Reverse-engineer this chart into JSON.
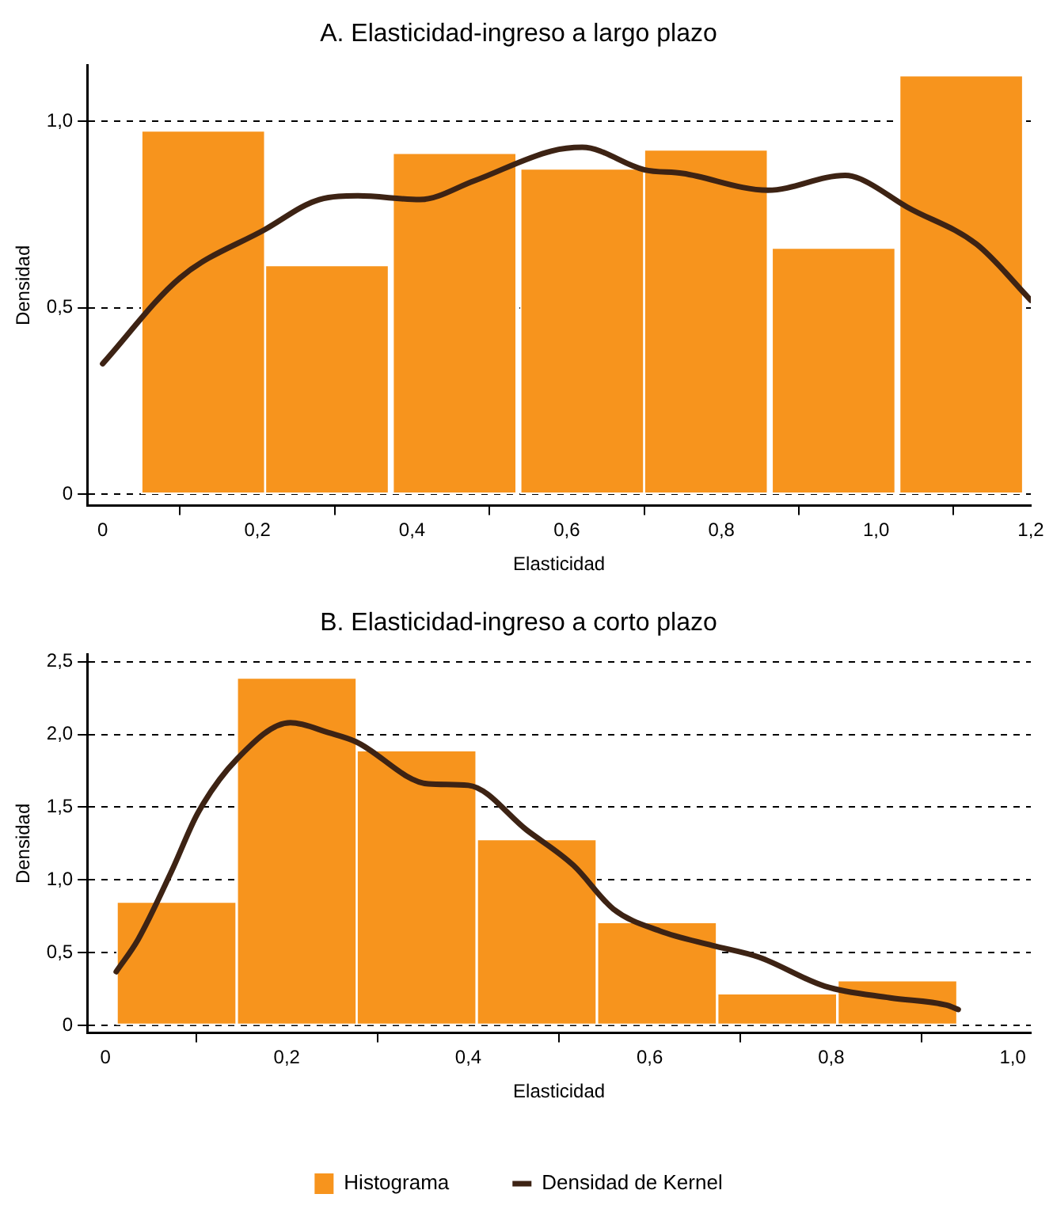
{
  "chart_data": [
    {
      "type": "histogram",
      "title": "A. Elasticidad-ingreso a largo plazo",
      "xlabel": "Elasticidad",
      "ylabel": "Densidad",
      "xlim": [
        -0.02,
        1.2
      ],
      "xticks": [
        0,
        {
          "value": 0.2,
          "label": "0,2"
        },
        {
          "value": 0.4,
          "label": "0,4"
        },
        {
          "value": 0.6,
          "label": "0,6"
        },
        {
          "value": 0.8,
          "label": "0,8"
        },
        {
          "value": 1.0,
          "label": "1,0"
        },
        {
          "value": 1.2,
          "label": "1,2"
        }
      ],
      "ylim": [
        -0.03,
        1.15
      ],
      "yticks": [
        0,
        {
          "value": 0.5,
          "label": "0,5"
        },
        {
          "value": 1.0,
          "label": "1,0"
        }
      ],
      "grid": "y",
      "legend": false,
      "series": [
        {
          "type": "histogram",
          "color": "#f7941d",
          "bins": [
            0.05,
            0.21,
            0.37,
            0.54,
            0.7,
            0.86,
            1.03,
            1.19
          ],
          "values": [
            0.975,
            0.614,
            0.915,
            0.873,
            0.924,
            0.661,
            1.123
          ]
        },
        {
          "type": "line",
          "color": "#3d2314",
          "x": [
            0,
            0.1,
            0.21,
            0.28,
            0.33,
            0.41,
            0.48,
            0.58,
            0.62,
            0.7,
            0.75,
            0.86,
            0.96,
            0.98,
            1.04,
            1.13,
            1.2
          ],
          "values": [
            0.35,
            0.58,
            0.71,
            0.79,
            0.8,
            0.79,
            0.84,
            0.92,
            0.93,
            0.87,
            0.86,
            0.815,
            0.855,
            0.845,
            0.77,
            0.67,
            0.52
          ]
        }
      ]
    },
    {
      "type": "histogram",
      "title": "B. Elasticidad-ingreso a corto plazo",
      "xlabel": "Elasticidad",
      "ylabel": "Densidad",
      "xlim": [
        -0.02,
        1.02
      ],
      "xticks": [
        0,
        {
          "value": 0.2,
          "label": "0,2"
        },
        {
          "value": 0.4,
          "label": "0,4"
        },
        {
          "value": 0.6,
          "label": "0,6"
        },
        {
          "value": 0.8,
          "label": "0,8"
        },
        {
          "value": 1.0,
          "label": "1,0"
        }
      ],
      "ylim": [
        -0.05,
        2.55
      ],
      "yticks": [
        0,
        {
          "value": 0.5,
          "label": "0,5"
        },
        {
          "value": 1.0,
          "label": "1,0"
        },
        {
          "value": 1.5,
          "label": "1,5"
        },
        {
          "value": 2.0,
          "label": "2,0"
        },
        {
          "value": 2.5,
          "label": "2,5"
        }
      ],
      "grid": "y",
      "legend": "bottom",
      "series": [
        {
          "type": "histogram",
          "name": "Histograma",
          "color": "#f7941d",
          "bins": [
            0.012,
            0.145,
            0.277,
            0.409,
            0.542,
            0.674,
            0.807,
            0.939
          ],
          "values": [
            0.85,
            2.39,
            1.89,
            1.28,
            0.71,
            0.22,
            0.31
          ]
        },
        {
          "type": "line",
          "name": "Densidad de Kernel",
          "color": "#3d2314",
          "x": [
            0.012,
            0.036,
            0.073,
            0.102,
            0.145,
            0.204,
            0.247,
            0.276,
            0.356,
            0.4,
            0.465,
            0.516,
            0.56,
            0.611,
            0.669,
            0.72,
            0.793,
            0.865,
            0.927,
            0.94
          ],
          "values": [
            0.37,
            0.59,
            1.06,
            1.46,
            1.83,
            2.08,
            2.01,
            1.95,
            1.66,
            1.65,
            1.34,
            1.1,
            0.8,
            0.65,
            0.55,
            0.47,
            0.27,
            0.19,
            0.14,
            0.11
          ]
        }
      ]
    }
  ]
}
